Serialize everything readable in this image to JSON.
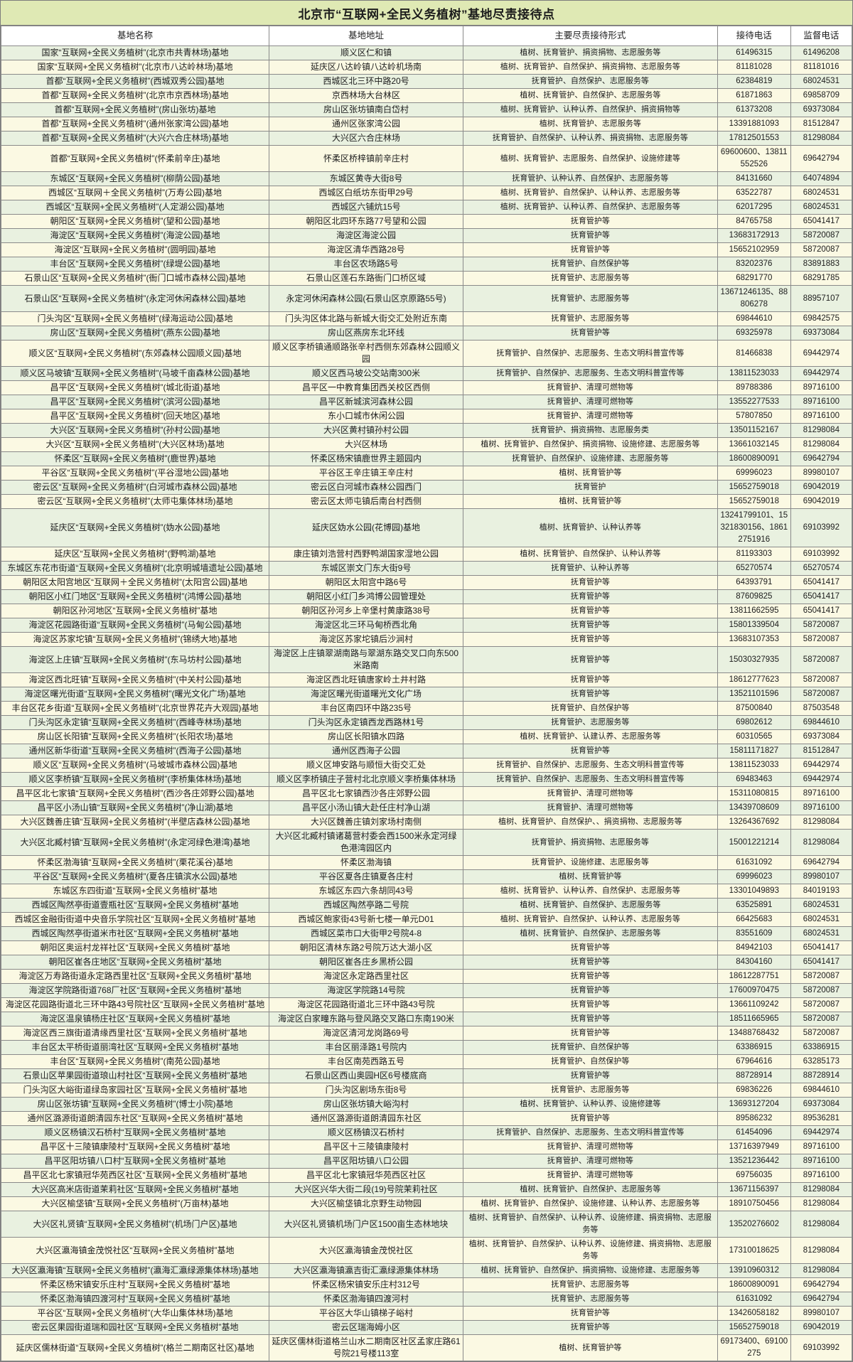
{
  "title": "北京市“互联网+全民义务植树”基地尽责接待点",
  "columns": [
    "基地名称",
    "基地地址",
    "主要尽责接待形式",
    "接待电话",
    "监督电话"
  ],
  "colors": {
    "title_bg": "#dfe9b4",
    "row_green": "#e9f1e0",
    "row_cream": "#fbf9e3",
    "border": "#8a8a8a"
  },
  "rows": [
    [
      "国家“互联网+全民义务植树”(北京市共青林场)基地",
      "顺义区仁和镇",
      "植树、抚育管护、捐资捐物、志愿服务等",
      "61496315",
      "61496208"
    ],
    [
      "国家“互联网+全民义务植树”(北京市八达岭林场)基地",
      "延庆区八达岭镇八达岭机场南",
      "植树、抚育管护、自然保护、捐资捐物、志愿服务等",
      "81181028",
      "81181016"
    ],
    [
      "首都“互联网+全民义务植树”(西城双秀公园)基地",
      "西城区北三环中路20号",
      "抚育管护、自然保护、志愿服务等",
      "62384819",
      "68024531"
    ],
    [
      "首都“互联网+全民义务植树”(北京市京西林场)基地",
      "京西林场大台林区",
      "植树、抚育管护、自然保护、志愿服务等",
      "61871863",
      "69858709"
    ],
    [
      "首都“互联网+全民义务植树”(房山张坊)基地",
      "房山区张坊镇南白岱村",
      "植树、抚育管护、认种认养、自然保护、捐资捐物等",
      "61373208",
      "69373084"
    ],
    [
      "首都“互联网+全民义务植树”(通州张家湾公园)基地",
      "通州区张家湾公园",
      "植树、抚育管护、志愿服务等",
      "13391881093",
      "81512847"
    ],
    [
      "首都“互联网+全民义务植树”(大兴六合庄林场)基地",
      "大兴区六合庄林场",
      "抚育管护、自然保护、认种认养、捐资捐物、志愿服务等",
      "17812501553",
      "81298084"
    ],
    [
      "首都“互联网+全民义务植树”(怀柔前辛庄)基地",
      "怀柔区桥梓镇前辛庄村",
      "植树、抚育管护、志愿服务、自然保护、设施修建等",
      "69600600、13811552526",
      "69642794"
    ],
    [
      "东城区“互联网+全民义务植树”(柳荫公园)基地",
      "东城区黄寺大街8号",
      "抚育管护、认种认养、自然保护、志愿服务等",
      "84131660",
      "64074894"
    ],
    [
      "西城区“互联网＋全民义务植树”(万寿公园)基地",
      "西城区白纸坊东街甲29号",
      "植树、抚育管护、自然保护、认种认养、志愿服务等",
      "63522787",
      "68024531"
    ],
    [
      "西城区“互联网+全民义务植树”(人定湖公园)基地",
      "西城区六铺炕15号",
      "植树、抚育管护、认种认养、自然保护、志愿服务等",
      "62017295",
      "68024531"
    ],
    [
      "朝阳区“互联网+全民义务植树”(望和公园)基地",
      "朝阳区北四环东路77号望和公园",
      "抚育管护等",
      "84765758",
      "65041417"
    ],
    [
      "海淀区“互联网+全民义务植树”(海淀公园)基地",
      "海淀区海淀公园",
      "抚育管护等",
      "13683172913",
      "58720087"
    ],
    [
      "海淀区“互联网+全民义务植树”(圆明园)基地",
      "海淀区清华西路28号",
      "抚育管护等",
      "15652102959",
      "58720087"
    ],
    [
      "丰台区“互联网+全民义务植树”(绿堤公园)基地",
      "丰台区农场路5号",
      "抚育管护、自然保护等",
      "83202376",
      "83891883"
    ],
    [
      "石景山区“互联网+全民义务植树”(衙门口城市森林公园)基地",
      "石景山区莲石东路衙门口桥区域",
      "抚育管护、志愿服务等",
      "68291770",
      "68291785"
    ],
    [
      "石景山区“互联网+全民义务植树”(永定河休闲森林公园)基地",
      "永定河休闲森林公园(石景山区京原路55号)",
      "抚育管护、志愿服务等",
      "13671246135、88806278",
      "88957107"
    ],
    [
      "门头沟区“互联网+全民义务植树”(绿海运动公园)基地",
      "门头沟区体北路与新城大街交汇处附近东南",
      "抚育管护、志愿服务等",
      "69844610",
      "69842575"
    ],
    [
      "房山区“互联网+全民义务植树”(燕东公园)基地",
      "房山区燕房东北环线",
      "抚育管护等",
      "69325978",
      "69373084"
    ],
    [
      "顺义区“互联网+全民义务植树”(东郊森林公园顺义园)基地",
      "顺义区李桥镇通顺路张辛村西侧东郊森林公园顺义园",
      "抚育管护、自然保护、志愿服务、生态文明科普宣传等",
      "81466838",
      "69442974"
    ],
    [
      "顺义区马坡镇“互联网+全民义务植树”(马坡千亩森林公园)基地",
      "顺义区西马坡公交站南300米",
      "抚育管护、自然保护、志愿服务、生态文明科普宣传等",
      "13811523033",
      "69442974"
    ],
    [
      "昌平区“互联网+全民义务植树”(城北街道)基地",
      "昌平区一中教育集团西关校区西侧",
      "抚育管护、清理可燃物等",
      "89788386",
      "89716100"
    ],
    [
      "昌平区“互联网+全民义务植树”(滨河公园)基地",
      "昌平区新城滨河森林公园",
      "抚育管护、清理可燃物等",
      "13552277533",
      "89716100"
    ],
    [
      "昌平区“互联网+全民义务植树”(回天地区)基地",
      "东小口城市休闲公园",
      "抚育管护、清理可燃物等",
      "57807850",
      "89716100"
    ],
    [
      "大兴区“互联网+全民义务植树”(孙村公园)基地",
      "大兴区黄村镇孙村公园",
      "抚育管护、捐资捐物、志愿服务类",
      "13501152167",
      "81298084"
    ],
    [
      "大兴区“互联网+全民义务植树”(大兴区林场)基地",
      "大兴区林场",
      "植树、抚育管护、自然保护、捐资捐物、设施修建、志愿服务等",
      "13661032145",
      "81298084"
    ],
    [
      "怀柔区“互联网+全民义务植树”(鹿世界)基地",
      "怀柔区杨宋镇鹿世界主题园内",
      "抚育管护、自然保护、设施修建、志愿服务等",
      "18600890091",
      "69642794"
    ],
    [
      "平谷区“互联网+全民义务植树”(平谷湿地公园)基地",
      "平谷区王辛庄镇王辛庄村",
      "植树、抚育管护等",
      "69996023",
      "89980107"
    ],
    [
      "密云区“互联网+全民义务植树”(白河城市森林公园)基地",
      "密云区白河城市森林公园西门",
      "抚育管护",
      "15652759018",
      "69042019"
    ],
    [
      "密云区“互联网+全民义务植树”(太师屯集体林场)基地",
      "密云区太师屯镇后南台村西侧",
      "植树、抚育管护等",
      "15652759018",
      "69042019"
    ],
    [
      "延庆区“互联网+全民义务植树”(妫水公园)基地",
      "延庆区妫水公园(花博园)基地",
      "植树、抚育管护、认种认养等",
      "13241799101、15321830156、18612751916",
      "69103992"
    ],
    [
      "延庆区“互联网+全民义务植树”(野鸭湖)基地",
      "康庄镇刘浩营村西野鸭湖国家湿地公园",
      "植树、抚育管护、自然保护、认种认养等",
      "81193303",
      "69103992"
    ],
    [
      "东城区东花市街道“互联网+全民义务植树”(北京明城墙遗址公园)基地",
      "东城区崇文门东大街9号",
      "抚育管护、认种认养等",
      "65270574",
      "65270574"
    ],
    [
      "朝阳区太阳宫地区“互联网＋全民义务植树”(太阳宫公园)基地",
      "朝阳区太阳宫中路6号",
      "抚育管护等",
      "64393791",
      "65041417"
    ],
    [
      "朝阳区小红门地区“互联网+全民义务植树”(鸿博公园)基地",
      "朝阳区小红门乡鸿博公园管理处",
      "抚育管护等",
      "87609825",
      "65041417"
    ],
    [
      "朝阳区孙河地区“互联网+全民义务植树”基地",
      "朝阳区孙河乡上辛堡村黄康路38号",
      "抚育管护等",
      "13811662595",
      "65041417"
    ],
    [
      "海淀区花园路街道“互联网+全民义务植树”(马甸公园)基地",
      "海淀区北三环马甸桥西北角",
      "抚育管护等",
      "15801339504",
      "58720087"
    ],
    [
      "海淀区苏家坨镇“互联网+全民义务植树”(锦绣大地)基地",
      "海淀区苏家坨镇后沙涧村",
      "抚育管护等",
      "13683107353",
      "58720087"
    ],
    [
      "海淀区上庄镇“互联网+全民义务植树”(东马坊村公园)基地",
      "海淀区上庄镇翠湖南路与翠湖东路交叉口向东500米路南",
      "抚育管护等",
      "15030327935",
      "58720087"
    ],
    [
      "海淀区西北旺镇“互联网+全民义务植树”(中关村公园)基地",
      "海淀区西北旺镇唐家岭土井村路",
      "抚育管护等",
      "18612777623",
      "58720087"
    ],
    [
      "海淀区曙光街道“互联网+全民义务植树”(曙光文化广场)基地",
      "海淀区曙光街道曙光文化广场",
      "抚育管护等",
      "13521101596",
      "58720087"
    ],
    [
      "丰台区花乡街道“互联网+全民义务植树”(北京世界花卉大观园)基地",
      "丰台区南四环中路235号",
      "抚育管护、自然保护等",
      "87500840",
      "87503548"
    ],
    [
      "门头沟区永定镇“互联网+全民义务植树”(西峰寺林场)基地",
      "门头沟区永定镇西龙西路林1号",
      "抚育管护、志愿服务等",
      "69802612",
      "69844610"
    ],
    [
      "房山区长阳镇“互联网+全民义务植树”(长阳农场)基地",
      "房山区长阳镇水四路",
      "植树、抚育管护、认建认养、志愿服务等",
      "60310565",
      "69373084"
    ],
    [
      "通州区新华街道“互联网+全民义务植树”(西海子公园)基地",
      "通州区西海子公园",
      "抚育管护等",
      "15811171827",
      "81512847"
    ],
    [
      "顺义区“互联网+全民义务植树”(马坡城市森林公园)基地",
      "顺义区坤安路与顺恒大街交汇处",
      "抚育管护、自然保护、志愿服务、生态文明科普宣传等",
      "13811523033",
      "69442974"
    ],
    [
      "顺义区李桥镇“互联网+全民义务植树”(李桥集体林场)基地",
      "顺义区李桥镇庄子营村北北京顺义李桥集体林场",
      "抚育管护、自然保护、志愿服务、生态文明科普宣传等",
      "69483463",
      "69442974"
    ],
    [
      "昌平区北七家镇“互联网+全民义务植树”(西沙各庄郊野公园)基地",
      "昌平区北七家镇西沙各庄郊野公园",
      "抚育管护、清理可燃物等",
      "15311080815",
      "89716100"
    ],
    [
      "昌平区小汤山镇“互联网+全民义务植树”(净山湖)基地",
      "昌平区小汤山镇大赴任庄村净山湖",
      "抚育管护、清理可燃物等",
      "13439708609",
      "89716100"
    ],
    [
      "大兴区魏善庄镇“互联网+全民义务植树”(半壁店森林公园)基地",
      "大兴区魏善庄镇刘家场村南侧",
      "植树、抚育管护、自然保护、、捐资捐物、志愿服务等",
      "13264367692",
      "81298084"
    ],
    [
      "大兴区北臧村镇“互联网+全民义务植树”(永定河绿色港湾)基地",
      "大兴区北臧村镇诸葛营村委会西1500米永定河绿色港湾园区内",
      "抚育管护、捐资捐物、志愿服务等",
      "15001221214",
      "81298084"
    ],
    [
      "怀柔区渤海镇“互联网+全民义务植树”(栗花溪谷)基地",
      "怀柔区渤海镇",
      "抚育管护、设施修建、志愿服务等",
      "61631092",
      "69642794"
    ],
    [
      "平谷区“互联网+全民义务植树”(夏各庄镇滨水公园)基地",
      "平谷区夏各庄镇夏各庄村",
      "植树、抚育管护等",
      "69996023",
      "89980107"
    ],
    [
      "东城区东四街道“互联网+全民义务植树”基地",
      "东城区东四六条胡同43号",
      "植树、抚育管护、认种认养、自然保护、志愿服务等",
      "13301049893",
      "84019193"
    ],
    [
      "西城区陶然亭街道壹瓶社区“互联网+全民义务植树”基地",
      "西城区陶然亭路二号院",
      "植树、抚育管护、自然保护、志愿服务等",
      "63525891",
      "68024531"
    ],
    [
      "西城区金融街街道中央音乐学院社区“互联网+全民义务植树”基地",
      "西城区鲍家街43号新七楼一单元D01",
      "植树、抚育管护、自然保护、认种认养、志愿服务等",
      "66425683",
      "68024531"
    ],
    [
      "西城区陶然亭街道米市社区“互联网+全民义务植树”基地",
      "西城区菜市口大街甲2号院4-8",
      "植树、抚育管护、自然保护、志愿服务等",
      "83551609",
      "68024531"
    ],
    [
      "朝阳区奥运村龙祥社区“互联网+全民义务植树”基地",
      "朝阳区清林东路2号院万达大湖小区",
      "抚育管护等",
      "84942103",
      "65041417"
    ],
    [
      "朝阳区崔各庄地区“互联网+全民义务植树”基地",
      "朝阳区崔各庄乡黑桥公园",
      "抚育管护等",
      "84304160",
      "65041417"
    ],
    [
      "海淀区万寿路街道永定路西里社区“互联网+全民义务植树”基地",
      "海淀区永定路西里社区",
      "抚育管护等",
      "18612287751",
      "58720087"
    ],
    [
      "海淀区学院路街道768厂社区“互联网+全民义务植树”基地",
      "海淀区学院路14号院",
      "抚育管护等",
      "17600970475",
      "58720087"
    ],
    [
      "海淀区花园路街道北三环中路43号院社区“互联网+全民义务植树”基地",
      "海淀区花园路街道北三环中路43号院",
      "抚育管护等",
      "13661109242",
      "58720087"
    ],
    [
      "海淀区温泉镇杨庄社区“互联网+全民义务植树”基地",
      "海淀区白家疃东路与登风路交叉路口东南190米",
      "抚育管护等",
      "18511665965",
      "58720087"
    ],
    [
      "海淀区西三旗街道清缘西里社区“互联网+全民义务植树”基地",
      "海淀区清河龙岗路69号",
      "抚育管护等",
      "13488768432",
      "58720087"
    ],
    [
      "丰台区太平桥街道丽湾社区“互联网+全民义务植树”基地",
      "丰台区丽泽路1号院内",
      "抚育管护、自然保护等",
      "63386915",
      "63386915"
    ],
    [
      "丰台区“互联网+全民义务植树”(南苑公园)基地",
      "丰台区南苑西路五号",
      "抚育管护、自然保护等",
      "67964616",
      "63285173"
    ],
    [
      "石景山区苹果园街道琅山村社区“互联网+全民义务植树”基地",
      "石景山区西山奥园H区6号楼底商",
      "抚育管护等",
      "88728914",
      "88728914"
    ],
    [
      "门头沟区大峪街道绿岛家园社区“互联网+全民义务植树”基地",
      "门头沟区剧场东街8号",
      "抚育管护、志愿服务等",
      "69836226",
      "69844610"
    ],
    [
      "房山区张坊镇“互联网+全民义务植树”(博士小院)基地",
      "房山区张坊镇大峪沟村",
      "植树、抚育管护、认种认养、设施修建等",
      "13693127204",
      "69373084"
    ],
    [
      "通州区潞源街道朗清园东社区“互联网+全民义务植树”基地",
      "通州区潞源街道朗清园东社区",
      "抚育管护等",
      "89586232",
      "89536281"
    ],
    [
      "顺义区杨镇汉石桥村“互联网+全民义务植树”基地",
      "顺义区杨镇汉石桥村",
      "抚育管护、自然保护、志愿服务、生态文明科普宣传等",
      "61454096",
      "69442974"
    ],
    [
      "昌平区十三陵镇康陵村“互联网+全民义务植树”基地",
      "昌平区十三陵镇康陵村",
      "抚育管护、清理可燃物等",
      "13716397949",
      "89716100"
    ],
    [
      "昌平区阳坊镇八口村“互联网+全民义务植树”基地",
      "昌平区阳坊镇八口公园",
      "抚育管护、清理可燃物等",
      "13521236442",
      "89716100"
    ],
    [
      "昌平区北七家镇冠华苑西区社区“互联网+全民义务植树”基地",
      "昌平区北七家镇冠华苑西区社区",
      "抚育管护、清理可燃物等",
      "69756035",
      "89716100"
    ],
    [
      "大兴区高米店街道茉莉社区“互联网+全民义务植树”基地",
      "大兴区兴华大街二段(19)号院茉莉社区",
      "植树、抚育管护、自然保护、志愿服务等",
      "13671156397",
      "81298084"
    ],
    [
      "大兴区榆垡镇“互联网+全民义务植树”(万亩林)基地",
      "大兴区榆垡镇北京野生动物园",
      "植树、抚育管护、自然保护、设施修建、认种认养、志愿服务等",
      "18910750456",
      "81298084"
    ],
    [
      "大兴区礼贤镇“互联网+全民义务植树”(机场门户区)基地",
      "大兴区礼贤镇机场门户区1500亩生态林地块",
      "植树、抚育管护、自然保护、认种认养、设施修建、捐资捐物、志愿服务等",
      "13520276602",
      "81298084"
    ],
    [
      "大兴区瀛海镇金茂悦社区“互联网+全民义务植树”基地",
      "大兴区瀛海镇金茂悦社区",
      "植树、抚育管护、自然保护、认种认养、设施修建、捐资捐物、志愿服务等",
      "17310018625",
      "81298084"
    ],
    [
      "大兴区瀛海镇“互联网+全民义务植树”(瀛海汇瀛绿源集体林场)基地",
      "大兴区瀛海镇瀛吉街汇瀛绿源集体林场",
      "植树、抚育管护、自然保护、捐资捐物、设施修建、志愿服务等",
      "13910960312",
      "81298084"
    ],
    [
      "怀柔区杨宋镇安乐庄村“互联网+全民义务植树”基地",
      "怀柔区杨宋镇安乐庄村312号",
      "抚育管护、志愿服务等",
      "18600890091",
      "69642794"
    ],
    [
      "怀柔区渤海镇四渡河村“互联网+全民义务植树”基地",
      "怀柔区渤海镇四渡河村",
      "抚育管护、志愿服务等",
      "61631092",
      "69642794"
    ],
    [
      "平谷区“互联网+全民义务植树”(大华山集体林场)基地",
      "平谷区大华山镇梯子峪村",
      "抚育管护等",
      "13426058182",
      "89980107"
    ],
    [
      "密云区果园街道瑞和园社区“互联网+全民义务植树”基地",
      "密云区瑞海姆小区",
      "抚育管护等",
      "15652759018",
      "69042019"
    ],
    [
      "延庆区儒林街道“互联网+全民义务植树”(格兰二期南区社区)基地",
      "延庆区儒林街道格兰山水二期南区社区孟家庄路61号院21号楼113室",
      "植树、抚育管护等",
      "69173400、69100275",
      "69103992"
    ]
  ]
}
